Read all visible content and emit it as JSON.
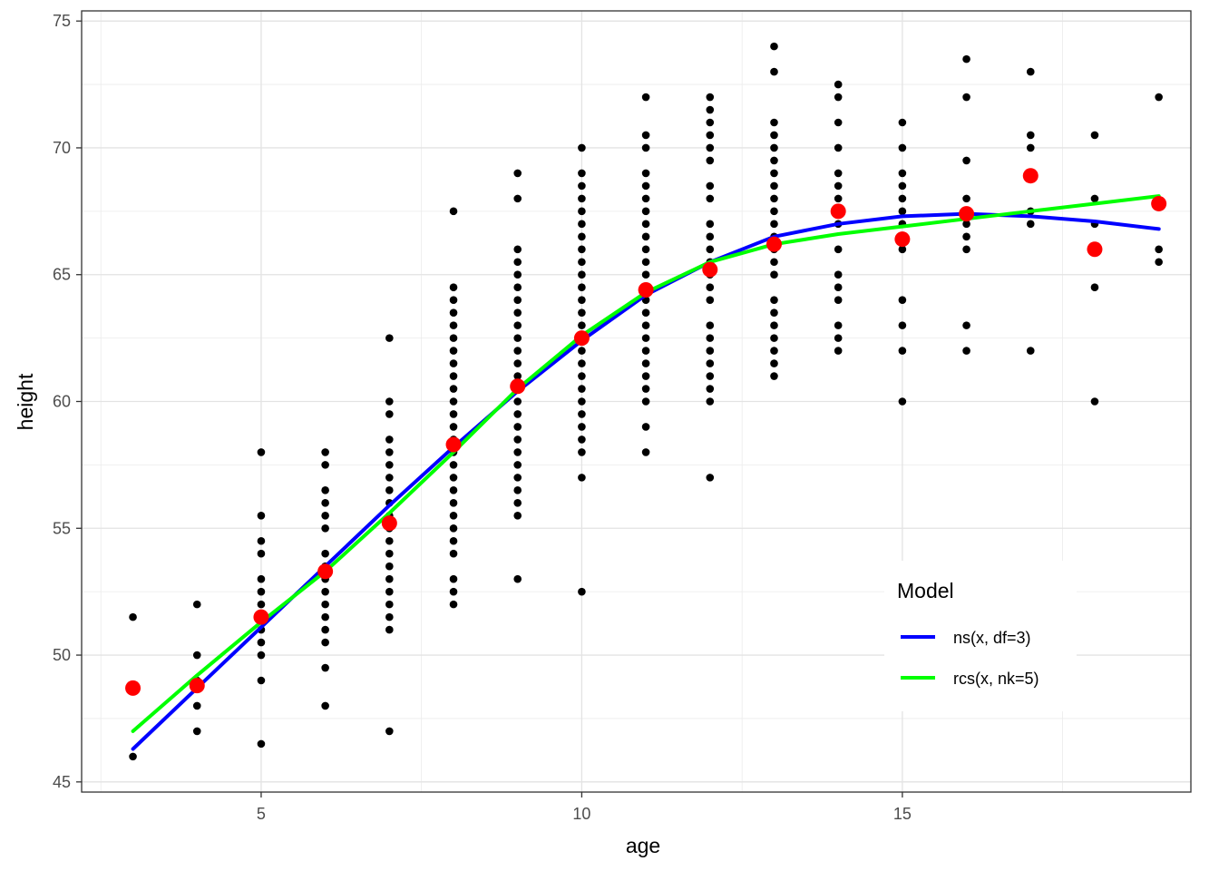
{
  "chart_data": {
    "type": "scatter",
    "xlabel": "age",
    "ylabel": "height",
    "xlim": [
      2.2,
      19.5
    ],
    "ylim": [
      44.6,
      75.4
    ],
    "x_ticks": [
      5,
      10,
      15
    ],
    "y_ticks": [
      45,
      50,
      55,
      60,
      65,
      70,
      75
    ],
    "grid": true,
    "legend": {
      "title": "Model",
      "placement": "bottom-right",
      "entries": [
        {
          "label": "ns(x, df=3)",
          "color": "#0000ff"
        },
        {
          "label": "rcs(x, nk=5)",
          "color": "#00ff00"
        }
      ]
    },
    "raw_points": {
      "color": "#000000",
      "groups": [
        {
          "x": 3,
          "y": [
            46,
            51.5
          ]
        },
        {
          "x": 4,
          "y": [
            47,
            48,
            49,
            50,
            52
          ]
        },
        {
          "x": 5,
          "y": [
            46.5,
            49,
            50,
            50.5,
            51,
            51.5,
            52,
            52.5,
            53,
            54,
            54.5,
            55.5,
            58
          ]
        },
        {
          "x": 6,
          "y": [
            48,
            49.5,
            50.5,
            51,
            51.5,
            52,
            52.5,
            53,
            53.5,
            54,
            55,
            55.5,
            56,
            56.5,
            57.5,
            58
          ]
        },
        {
          "x": 7,
          "y": [
            47,
            51,
            51.5,
            52,
            52.5,
            53,
            53.5,
            54,
            54.5,
            55,
            55.5,
            56,
            56.5,
            57,
            57.5,
            58,
            58.5,
            59.5,
            60,
            62.5
          ]
        },
        {
          "x": 8,
          "y": [
            52,
            52.5,
            53,
            54,
            54.5,
            55,
            55.5,
            56,
            56.5,
            57,
            57.5,
            58,
            58.5,
            59,
            59.5,
            60,
            60.5,
            61,
            61.5,
            62,
            62.5,
            63,
            63.5,
            64,
            64.5,
            67.5
          ]
        },
        {
          "x": 9,
          "y": [
            53,
            55.5,
            56,
            56.5,
            57,
            57.5,
            58,
            58.5,
            59,
            59.5,
            60,
            60.5,
            61,
            61.5,
            62,
            62.5,
            63,
            63.5,
            64,
            64.5,
            65,
            65.5,
            66,
            68,
            69
          ]
        },
        {
          "x": 10,
          "y": [
            52.5,
            57,
            58,
            58.5,
            59,
            59.5,
            60,
            60.5,
            61,
            61.5,
            62,
            62.5,
            63,
            63.5,
            64,
            64.5,
            65,
            65.5,
            66,
            66.5,
            67,
            67.5,
            68,
            68.5,
            69,
            70
          ]
        },
        {
          "x": 11,
          "y": [
            58,
            59,
            60,
            60.5,
            61,
            61.5,
            62,
            62.5,
            63,
            63.5,
            64,
            64.5,
            65,
            65.5,
            66,
            66.5,
            67,
            67.5,
            68,
            68.5,
            69,
            70,
            70.5,
            72
          ]
        },
        {
          "x": 12,
          "y": [
            57,
            60,
            60.5,
            61,
            61.5,
            62,
            62.5,
            63,
            64,
            64.5,
            65,
            65.5,
            66,
            66.5,
            67,
            68,
            68.5,
            69.5,
            70,
            70.5,
            71,
            71.5,
            72
          ]
        },
        {
          "x": 13,
          "y": [
            61,
            61.5,
            62,
            62.5,
            63,
            63.5,
            64,
            65,
            65.5,
            66,
            66.5,
            67,
            67.5,
            68,
            68.5,
            69,
            69.5,
            70,
            70.5,
            71,
            73,
            74
          ]
        },
        {
          "x": 14,
          "y": [
            62,
            62.5,
            63,
            64,
            64.5,
            65,
            66,
            67,
            67.5,
            68,
            68.5,
            69,
            70,
            71,
            72,
            72.5
          ]
        },
        {
          "x": 15,
          "y": [
            60,
            62,
            63,
            64,
            66,
            66.5,
            67,
            67.5,
            68,
            68.5,
            69,
            70,
            71
          ]
        },
        {
          "x": 16,
          "y": [
            62,
            63,
            66,
            66.5,
            67,
            67.5,
            68,
            69.5,
            72,
            73.5
          ]
        },
        {
          "x": 17,
          "y": [
            62,
            67,
            67.5,
            70,
            70.5,
            73
          ]
        },
        {
          "x": 18,
          "y": [
            60,
            64.5,
            66,
            67,
            68,
            70.5
          ]
        },
        {
          "x": 19,
          "y": [
            65.5,
            66,
            72
          ]
        }
      ]
    },
    "mean_points": {
      "color": "#ff0000",
      "x": [
        3,
        4,
        5,
        6,
        7,
        8,
        9,
        10,
        11,
        12,
        13,
        14,
        15,
        16,
        17,
        18,
        19
      ],
      "y": [
        48.7,
        48.8,
        51.5,
        53.3,
        55.2,
        58.3,
        60.6,
        62.5,
        64.4,
        65.2,
        66.2,
        67.5,
        66.4,
        67.4,
        68.9,
        66.0,
        67.8
      ]
    },
    "series": [
      {
        "name": "ns(x, df=3)",
        "color": "#0000ff",
        "x": [
          3,
          4,
          5,
          6,
          7,
          8,
          9,
          10,
          11,
          12,
          13,
          14,
          15,
          16,
          17,
          18,
          19
        ],
        "y": [
          46.3,
          48.7,
          51.1,
          53.5,
          55.9,
          58.2,
          60.4,
          62.4,
          64.2,
          65.5,
          66.5,
          67.0,
          67.3,
          67.4,
          67.3,
          67.1,
          66.8
        ]
      },
      {
        "name": "rcs(x, nk=5)",
        "color": "#00ff00",
        "x": [
          3,
          4,
          5,
          6,
          7,
          8,
          9,
          10,
          11,
          12,
          13,
          14,
          15,
          16,
          17,
          18,
          19
        ],
        "y": [
          47.0,
          49.2,
          51.3,
          53.3,
          55.6,
          58.0,
          60.5,
          62.6,
          64.3,
          65.5,
          66.2,
          66.6,
          66.9,
          67.2,
          67.5,
          67.8,
          68.1
        ]
      }
    ]
  }
}
